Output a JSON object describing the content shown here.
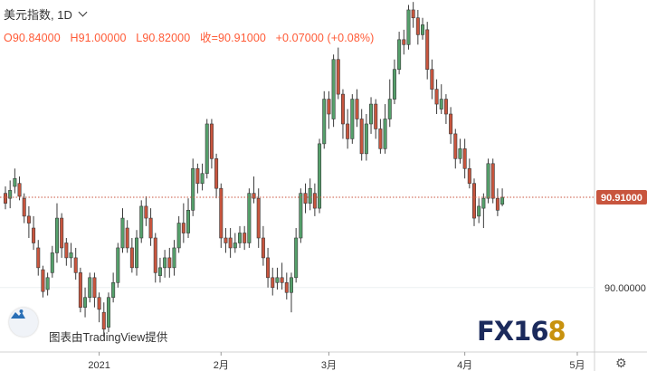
{
  "header": {
    "symbol": "美元指数",
    "separator": ", ",
    "interval": "1D",
    "ohlc": {
      "open": "O90.84000",
      "high": "H91.00000",
      "low": "L90.82000",
      "close": "收=90.91000",
      "change": "+0.07000 (+0.08%)"
    }
  },
  "watermark": {
    "provider_text": "图表由TradingView提供",
    "logo_main": "FX16",
    "logo_last": "8"
  },
  "colors": {
    "up": "#55a06b",
    "down": "#c8553e",
    "price_line": "#c8553e",
    "text": "#333333"
  },
  "chart_data": {
    "type": "candlestick",
    "ylim": [
      89.35,
      92.9
    ],
    "price_tag": "90.91000",
    "yticks": [
      {
        "value": 90.0,
        "label": "90.00000"
      }
    ],
    "xticks": [
      {
        "index": 20,
        "label": "2021"
      },
      {
        "index": 46,
        "label": "2月"
      },
      {
        "index": 69,
        "label": "3月"
      },
      {
        "index": 98,
        "label": "4月"
      },
      {
        "index": 122,
        "label": "5月"
      }
    ],
    "candles": [
      [
        90.95,
        90.85,
        91.02,
        90.79
      ],
      [
        90.9,
        90.98,
        91.08,
        90.8
      ],
      [
        91.02,
        91.1,
        91.2,
        90.95
      ],
      [
        91.05,
        90.92,
        91.12,
        90.88
      ],
      [
        90.9,
        90.72,
        90.95,
        90.65
      ],
      [
        90.72,
        90.65,
        90.82,
        90.5
      ],
      [
        90.6,
        90.45,
        90.72,
        90.38
      ],
      [
        90.4,
        90.2,
        90.48,
        90.12
      ],
      [
        90.18,
        89.96,
        90.22,
        89.9
      ],
      [
        89.98,
        90.1,
        90.15,
        89.92
      ],
      [
        90.15,
        90.35,
        90.42,
        90.1
      ],
      [
        90.35,
        90.7,
        90.85,
        90.25
      ],
      [
        90.7,
        90.4,
        90.75,
        90.3
      ],
      [
        90.45,
        90.3,
        90.5,
        90.22
      ],
      [
        90.3,
        90.35,
        90.45,
        90.2
      ],
      [
        90.3,
        90.15,
        90.4,
        90.08
      ],
      [
        90.15,
        89.8,
        90.2,
        89.75
      ],
      [
        89.8,
        89.9,
        90.0,
        89.7
      ],
      [
        89.9,
        90.1,
        90.15,
        89.85
      ],
      [
        90.1,
        89.9,
        90.15,
        89.8
      ],
      [
        89.9,
        89.78,
        89.95,
        89.65
      ],
      [
        89.75,
        89.58,
        89.85,
        89.5
      ],
      [
        89.6,
        89.9,
        89.95,
        89.55
      ],
      [
        89.9,
        90.05,
        90.15,
        89.85
      ],
      [
        90.05,
        90.4,
        90.45,
        90.0
      ],
      [
        90.4,
        90.7,
        90.8,
        90.35
      ],
      [
        90.6,
        90.4,
        90.68,
        90.35
      ],
      [
        90.4,
        90.2,
        90.5,
        90.15
      ],
      [
        90.2,
        90.5,
        90.58,
        90.12
      ],
      [
        90.5,
        90.82,
        90.88,
        90.45
      ],
      [
        90.82,
        90.7,
        90.92,
        90.62
      ],
      [
        90.7,
        90.5,
        90.8,
        90.42
      ],
      [
        90.5,
        90.15,
        90.55,
        90.05
      ],
      [
        90.12,
        90.2,
        90.3,
        90.05
      ],
      [
        90.2,
        90.3,
        90.38,
        90.1
      ],
      [
        90.3,
        90.2,
        90.4,
        90.1
      ],
      [
        90.2,
        90.4,
        90.48,
        90.12
      ],
      [
        90.4,
        90.65,
        90.72,
        90.35
      ],
      [
        90.65,
        90.55,
        90.85,
        90.45
      ],
      [
        90.55,
        90.78,
        90.9,
        90.5
      ],
      [
        90.78,
        91.2,
        91.3,
        90.72
      ],
      [
        91.2,
        91.05,
        91.25,
        90.95
      ],
      [
        91.05,
        91.15,
        91.25,
        90.98
      ],
      [
        91.15,
        91.65,
        91.7,
        91.1
      ],
      [
        91.65,
        91.3,
        91.7,
        91.2
      ],
      [
        91.3,
        91.0,
        91.35,
        90.9
      ],
      [
        91.0,
        90.5,
        91.05,
        90.4
      ],
      [
        90.5,
        90.45,
        90.6,
        90.35
      ],
      [
        90.5,
        90.4,
        90.6,
        90.3
      ],
      [
        90.4,
        90.45,
        90.55,
        90.35
      ],
      [
        90.45,
        90.55,
        90.62,
        90.4
      ],
      [
        90.55,
        90.45,
        90.62,
        90.38
      ],
      [
        90.45,
        90.95,
        91.0,
        90.4
      ],
      [
        90.95,
        90.9,
        91.12,
        90.85
      ],
      [
        90.9,
        90.5,
        91.0,
        90.4
      ],
      [
        90.5,
        90.3,
        90.62,
        90.22
      ],
      [
        90.3,
        90.1,
        90.4,
        90.0
      ],
      [
        90.1,
        90.0,
        90.2,
        89.92
      ],
      [
        90.05,
        90.1,
        90.2,
        89.98
      ],
      [
        90.1,
        90.05,
        90.25,
        89.98
      ],
      [
        90.05,
        89.95,
        90.15,
        89.88
      ],
      [
        89.95,
        90.1,
        90.15,
        89.75
      ],
      [
        90.1,
        90.5,
        90.6,
        90.05
      ],
      [
        90.5,
        90.95,
        91.0,
        90.45
      ],
      [
        90.95,
        90.85,
        91.05,
        90.75
      ],
      [
        90.85,
        91.0,
        91.1,
        90.78
      ],
      [
        90.95,
        90.8,
        91.05,
        90.72
      ],
      [
        90.8,
        91.45,
        91.5,
        90.75
      ],
      [
        91.45,
        91.9,
        91.98,
        91.4
      ],
      [
        91.9,
        91.75,
        91.98,
        91.6
      ],
      [
        91.7,
        92.3,
        92.35,
        91.62
      ],
      [
        92.3,
        91.95,
        92.42,
        91.9
      ],
      [
        91.95,
        91.65,
        92.0,
        91.5
      ],
      [
        91.65,
        91.5,
        91.8,
        91.4
      ],
      [
        91.5,
        91.9,
        91.95,
        91.45
      ],
      [
        91.9,
        91.7,
        92.0,
        91.62
      ],
      [
        91.7,
        91.35,
        91.8,
        91.28
      ],
      [
        91.35,
        91.65,
        91.75,
        91.28
      ],
      [
        91.65,
        91.85,
        91.92,
        91.55
      ],
      [
        91.85,
        91.6,
        91.9,
        91.5
      ],
      [
        91.6,
        91.4,
        91.7,
        91.35
      ],
      [
        91.4,
        91.7,
        91.85,
        91.35
      ],
      [
        91.7,
        91.9,
        92.1,
        91.62
      ],
      [
        91.9,
        92.2,
        92.3,
        91.85
      ],
      [
        92.2,
        92.5,
        92.58,
        92.15
      ],
      [
        92.5,
        92.45,
        92.6,
        92.35
      ],
      [
        92.45,
        92.8,
        92.85,
        92.4
      ],
      [
        92.8,
        92.72,
        92.88,
        92.62
      ],
      [
        92.72,
        92.55,
        92.8,
        92.45
      ],
      [
        92.55,
        92.65,
        92.72,
        92.5
      ],
      [
        92.6,
        92.2,
        92.68,
        92.1
      ],
      [
        92.2,
        92.0,
        92.3,
        91.9
      ],
      [
        92.0,
        91.85,
        92.1,
        91.75
      ],
      [
        91.8,
        91.9,
        92.05,
        91.75
      ],
      [
        91.9,
        91.75,
        91.95,
        91.65
      ],
      [
        91.75,
        91.55,
        91.82,
        91.45
      ],
      [
        91.55,
        91.3,
        91.6,
        91.2
      ],
      [
        91.3,
        91.4,
        91.5,
        91.25
      ],
      [
        91.4,
        91.2,
        91.5,
        91.1
      ],
      [
        91.2,
        91.05,
        91.3,
        91.0
      ],
      [
        91.05,
        90.7,
        91.1,
        90.62
      ],
      [
        90.72,
        90.82,
        90.9,
        90.65
      ],
      [
        90.8,
        90.9,
        90.95,
        90.6
      ],
      [
        90.9,
        91.25,
        91.3,
        90.85
      ],
      [
        91.25,
        90.9,
        91.3,
        90.85
      ],
      [
        90.9,
        90.78,
        91.0,
        90.72
      ],
      [
        90.84,
        90.91,
        91.0,
        90.82
      ]
    ]
  }
}
